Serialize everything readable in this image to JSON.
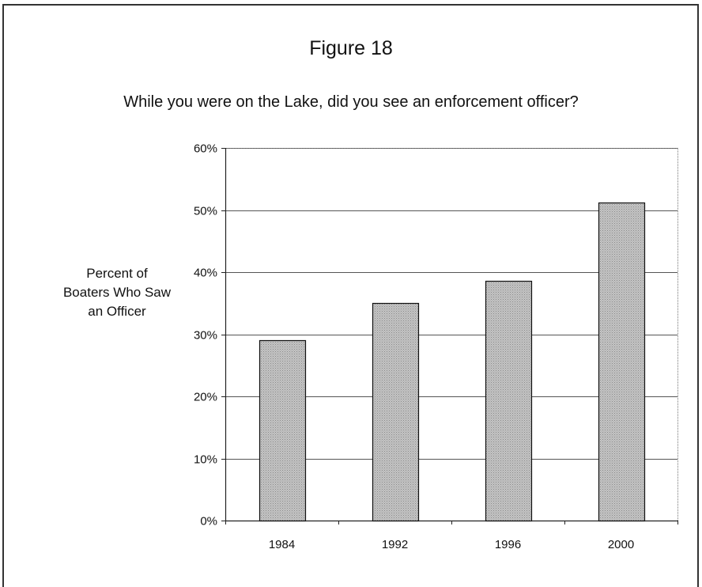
{
  "figure_label": "Figure 18",
  "chart_data": {
    "type": "bar",
    "title": "While you were on the Lake, did you see an enforcement officer?",
    "ylabel": "Percent of Boaters Who Saw an Officer",
    "ylabel_lines": [
      "Percent of",
      "Boaters Who Saw",
      "an Officer"
    ],
    "xlabel": "",
    "categories": [
      "1984",
      "1992",
      "1996",
      "2000"
    ],
    "values": [
      29,
      35,
      38.6,
      51.2
    ],
    "ylim": [
      0,
      60
    ],
    "yticks": [
      0,
      10,
      20,
      30,
      40,
      50,
      60
    ],
    "ytick_labels": [
      "0%",
      "10%",
      "20%",
      "30%",
      "40%",
      "50%",
      "60%"
    ],
    "grid": true,
    "bar_color": "#b3b3b3"
  }
}
